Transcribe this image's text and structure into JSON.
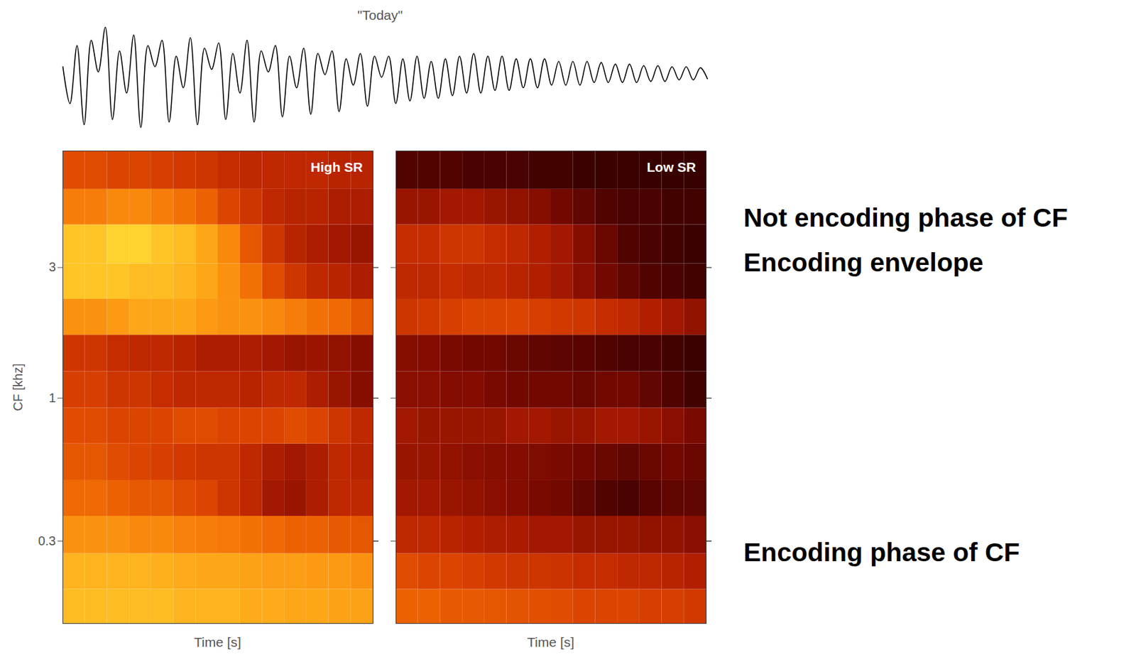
{
  "chart_data": [
    {
      "type": "line",
      "title": "\"Today\"",
      "color": "#000000",
      "tick_labels": false,
      "values": [
        0.2,
        -0.5,
        0.6,
        -0.9,
        0.7,
        0.1,
        0.95,
        -0.8,
        0.5,
        -0.3,
        0.8,
        -0.95,
        0.6,
        0.2,
        0.7,
        -0.85,
        0.4,
        -0.2,
        0.75,
        -0.9,
        0.55,
        0.15,
        0.65,
        -0.8,
        0.45,
        -0.3,
        0.7,
        -0.85,
        0.5,
        0.1,
        0.6,
        -0.75,
        0.4,
        -0.2,
        0.55,
        -0.7,
        0.45,
        0.05,
        0.5,
        -0.65,
        0.35,
        -0.15,
        0.45,
        -0.55,
        0.4,
        0.0,
        0.4,
        -0.5,
        0.35,
        -0.45,
        0.4,
        -0.4,
        0.3,
        -0.4,
        0.35,
        -0.35,
        0.4,
        -0.3,
        0.45,
        -0.3,
        0.4,
        -0.25,
        0.4,
        -0.25,
        0.35,
        -0.2,
        0.35,
        -0.2,
        0.35,
        -0.15,
        0.3,
        -0.15,
        0.3,
        -0.15,
        0.3,
        -0.1,
        0.28,
        -0.1,
        0.25,
        -0.1,
        0.25,
        -0.1,
        0.22,
        -0.08,
        0.22,
        -0.08,
        0.2,
        -0.05,
        0.2,
        -0.05,
        0.18,
        -0.03
      ]
    },
    {
      "type": "heatmap",
      "title": "High SR",
      "x_label": "Time [s]",
      "y_label": "CF [khz]",
      "log": "y",
      "ylim": [
        0.15,
        8
      ],
      "yticks": [
        0.3,
        1,
        3
      ],
      "tick_labels": "y",
      "zlim": [
        0,
        1
      ],
      "cf_edges": [
        0.15,
        0.2,
        0.27,
        0.37,
        0.5,
        0.68,
        0.92,
        1.25,
        1.7,
        2.3,
        3.1,
        4.3,
        5.8,
        8
      ],
      "cells": [
        [
          0.9,
          0.9,
          0.9,
          0.9,
          0.9,
          0.88,
          0.88,
          0.88,
          0.86,
          0.86,
          0.85,
          0.85,
          0.84,
          0.84
        ],
        [
          0.88,
          0.88,
          0.88,
          0.88,
          0.87,
          0.86,
          0.85,
          0.85,
          0.84,
          0.83,
          0.83,
          0.82,
          0.82,
          0.8
        ],
        [
          0.8,
          0.8,
          0.8,
          0.78,
          0.78,
          0.76,
          0.75,
          0.74,
          0.72,
          0.7,
          0.68,
          0.68,
          0.66,
          0.65
        ],
        [
          0.7,
          0.7,
          0.68,
          0.66,
          0.65,
          0.62,
          0.6,
          0.55,
          0.5,
          0.42,
          0.4,
          0.45,
          0.5,
          0.5
        ],
        [
          0.65,
          0.65,
          0.62,
          0.6,
          0.58,
          0.56,
          0.55,
          0.55,
          0.5,
          0.45,
          0.42,
          0.45,
          0.5,
          0.48
        ],
        [
          0.62,
          0.62,
          0.6,
          0.6,
          0.6,
          0.62,
          0.62,
          0.6,
          0.6,
          0.6,
          0.62,
          0.6,
          0.55,
          0.5
        ],
        [
          0.58,
          0.58,
          0.55,
          0.55,
          0.52,
          0.5,
          0.5,
          0.5,
          0.48,
          0.5,
          0.5,
          0.45,
          0.4,
          0.35
        ],
        [
          0.55,
          0.55,
          0.52,
          0.5,
          0.5,
          0.48,
          0.45,
          0.45,
          0.45,
          0.42,
          0.4,
          0.4,
          0.38,
          0.35
        ],
        [
          0.8,
          0.8,
          0.82,
          0.85,
          0.85,
          0.85,
          0.82,
          0.8,
          0.8,
          0.78,
          0.75,
          0.72,
          0.7,
          0.65
        ],
        [
          0.92,
          0.92,
          0.92,
          0.9,
          0.9,
          0.88,
          0.85,
          0.8,
          0.72,
          0.62,
          0.55,
          0.5,
          0.48,
          0.45
        ],
        [
          0.92,
          0.92,
          0.95,
          0.95,
          0.92,
          0.9,
          0.85,
          0.78,
          0.65,
          0.55,
          0.48,
          0.45,
          0.42,
          0.4
        ],
        [
          0.75,
          0.75,
          0.78,
          0.78,
          0.75,
          0.72,
          0.68,
          0.6,
          0.55,
          0.5,
          0.48,
          0.48,
          0.45,
          0.45
        ],
        [
          0.62,
          0.62,
          0.6,
          0.6,
          0.58,
          0.56,
          0.55,
          0.52,
          0.5,
          0.5,
          0.5,
          0.5,
          0.48,
          0.48
        ]
      ]
    },
    {
      "type": "heatmap",
      "title": "Low SR",
      "x_label": "Time [s]",
      "log": "y",
      "ylim": [
        0.15,
        8
      ],
      "yticks": [
        0.3,
        1,
        3
      ],
      "tick_labels": false,
      "zlim": [
        0,
        1
      ],
      "cf_edges": [
        0.15,
        0.2,
        0.27,
        0.37,
        0.5,
        0.68,
        0.92,
        1.25,
        1.7,
        2.3,
        3.1,
        4.3,
        5.8,
        8
      ],
      "cells": [
        [
          0.68,
          0.68,
          0.66,
          0.66,
          0.65,
          0.64,
          0.63,
          0.62,
          0.6,
          0.6,
          0.6,
          0.58,
          0.58,
          0.56
        ],
        [
          0.62,
          0.6,
          0.6,
          0.58,
          0.56,
          0.55,
          0.55,
          0.54,
          0.52,
          0.52,
          0.5,
          0.5,
          0.48,
          0.46
        ],
        [
          0.5,
          0.5,
          0.48,
          0.46,
          0.45,
          0.44,
          0.42,
          0.42,
          0.4,
          0.4,
          0.4,
          0.38,
          0.38,
          0.36
        ],
        [
          0.42,
          0.42,
          0.4,
          0.38,
          0.36,
          0.34,
          0.32,
          0.3,
          0.26,
          0.22,
          0.2,
          0.24,
          0.26,
          0.26
        ],
        [
          0.4,
          0.4,
          0.38,
          0.36,
          0.35,
          0.34,
          0.33,
          0.32,
          0.3,
          0.28,
          0.26,
          0.28,
          0.3,
          0.28
        ],
        [
          0.42,
          0.4,
          0.4,
          0.4,
          0.4,
          0.42,
          0.42,
          0.4,
          0.4,
          0.42,
          0.42,
          0.4,
          0.36,
          0.32
        ],
        [
          0.36,
          0.36,
          0.34,
          0.34,
          0.32,
          0.3,
          0.3,
          0.3,
          0.28,
          0.3,
          0.3,
          0.26,
          0.22,
          0.18
        ],
        [
          0.35,
          0.34,
          0.32,
          0.3,
          0.3,
          0.28,
          0.26,
          0.25,
          0.24,
          0.22,
          0.2,
          0.2,
          0.18,
          0.16
        ],
        [
          0.55,
          0.56,
          0.58,
          0.6,
          0.6,
          0.6,
          0.58,
          0.56,
          0.55,
          0.52,
          0.5,
          0.46,
          0.42,
          0.38
        ],
        [
          0.5,
          0.5,
          0.52,
          0.5,
          0.5,
          0.48,
          0.46,
          0.42,
          0.36,
          0.3,
          0.26,
          0.22,
          0.2,
          0.18
        ],
        [
          0.52,
          0.52,
          0.55,
          0.55,
          0.52,
          0.5,
          0.46,
          0.42,
          0.35,
          0.28,
          0.22,
          0.2,
          0.18,
          0.16
        ],
        [
          0.4,
          0.4,
          0.42,
          0.42,
          0.4,
          0.38,
          0.35,
          0.3,
          0.26,
          0.22,
          0.2,
          0.2,
          0.18,
          0.18
        ],
        [
          0.22,
          0.22,
          0.22,
          0.2,
          0.2,
          0.2,
          0.18,
          0.18,
          0.16,
          0.16,
          0.16,
          0.15,
          0.15,
          0.15
        ]
      ]
    }
  ],
  "annotations": [
    "Not encoding phase of CF",
    "Encoding envelope",
    "Encoding phase of CF"
  ]
}
